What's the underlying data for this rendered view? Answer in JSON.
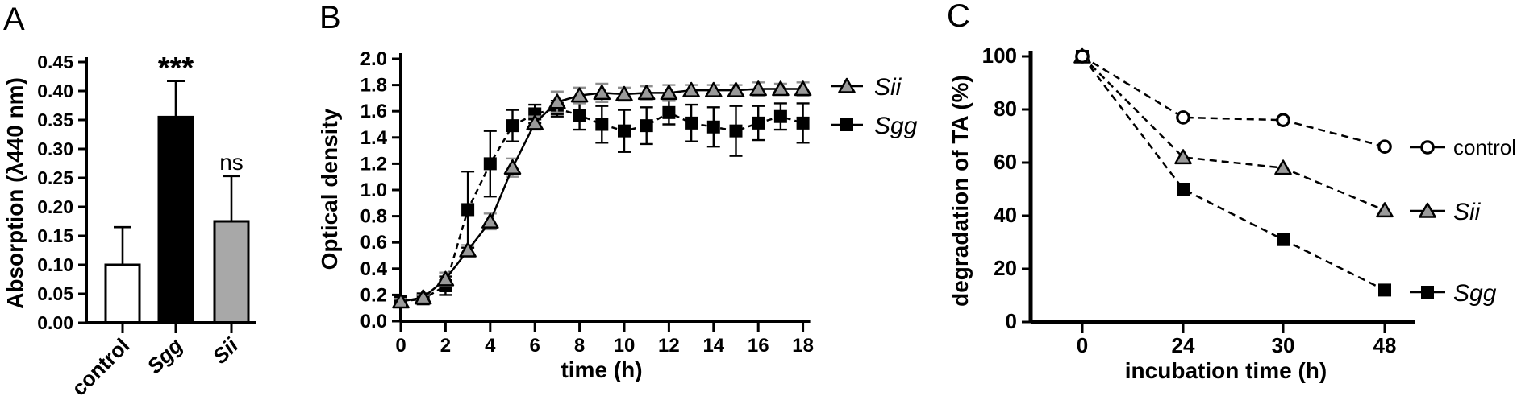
{
  "figure_background": "#ffffff",
  "chart_data": [
    {
      "id": "A",
      "type": "bar",
      "panel_label": "A",
      "ylabel": "Absorption  (λ440 nm)",
      "xlabel": "",
      "ylim": [
        0,
        0.45
      ],
      "ytick_step": 0.05,
      "ytick_labels": [
        "0.00",
        "0.05",
        "0.10",
        "0.15",
        "0.20",
        "0.25",
        "0.30",
        "0.35",
        "0.40",
        "0.45"
      ],
      "categories": [
        "control",
        "Sgg",
        "Sii"
      ],
      "categories_italic": [
        false,
        true,
        true
      ],
      "values": [
        0.1,
        0.355,
        0.175
      ],
      "errors_up": [
        0.065,
        0.062,
        0.078
      ],
      "bar_colors": [
        "#ffffff",
        "#000000",
        "#a8a8a8"
      ],
      "bar_border_color": "#000000",
      "significance": [
        "",
        "***",
        "ns"
      ],
      "grid": false,
      "legend_position": "none"
    },
    {
      "id": "B",
      "type": "line",
      "panel_label": "B",
      "ylabel": "Optical density",
      "xlabel": "time (h)",
      "ylim": [
        0,
        2.0
      ],
      "ytick_step": 0.2,
      "ytick_labels": [
        "0.0",
        "0.2",
        "0.4",
        "0.6",
        "0.8",
        "1.0",
        "1.2",
        "1.4",
        "1.6",
        "1.8",
        "2.0"
      ],
      "x": [
        0,
        1,
        2,
        3,
        4,
        5,
        6,
        7,
        8,
        9,
        10,
        11,
        12,
        13,
        14,
        15,
        16,
        17,
        18
      ],
      "xticks": [
        0,
        2,
        4,
        6,
        8,
        10,
        12,
        14,
        16,
        18
      ],
      "xtick_labels": [
        "0",
        "2",
        "4",
        "6",
        "8",
        "10",
        "12",
        "14",
        "16",
        "18"
      ],
      "xlim": [
        0,
        18
      ],
      "grid": false,
      "legend_position": "right-of-plot",
      "series": [
        {
          "name": "Sii",
          "italic": true,
          "marker": "triangle",
          "marker_fill": "#9a9a9a",
          "line_color": "#000000",
          "line_dash": "none",
          "error_color": "#8f8f8f",
          "values": [
            0.15,
            0.18,
            0.32,
            0.54,
            0.76,
            1.17,
            1.51,
            1.67,
            1.72,
            1.74,
            1.73,
            1.74,
            1.74,
            1.76,
            1.76,
            1.76,
            1.77,
            1.77,
            1.77
          ],
          "errors": [
            0.02,
            0.02,
            0.05,
            0.04,
            0.06,
            0.07,
            0.05,
            0.08,
            0.06,
            0.07,
            0.05,
            0.05,
            0.06,
            0.04,
            0.04,
            0.04,
            0.05,
            0.04,
            0.05
          ]
        },
        {
          "name": "Sgg",
          "italic": true,
          "marker": "square",
          "marker_fill": "#000000",
          "line_color": "#000000",
          "line_dash": "7 5",
          "error_color": "#000000",
          "values": [
            0.15,
            0.17,
            0.27,
            0.85,
            1.2,
            1.49,
            1.58,
            1.62,
            1.57,
            1.5,
            1.45,
            1.49,
            1.59,
            1.51,
            1.48,
            1.45,
            1.51,
            1.56,
            1.51
          ],
          "errors": [
            0.03,
            0.03,
            0.07,
            0.29,
            0.25,
            0.12,
            0.07,
            0.06,
            0.11,
            0.14,
            0.16,
            0.14,
            0.09,
            0.14,
            0.15,
            0.19,
            0.13,
            0.1,
            0.15
          ]
        }
      ]
    },
    {
      "id": "C",
      "type": "line",
      "panel_label": "C",
      "ylabel": "degradation of TA (%)",
      "xlabel": "incubation time (h)",
      "ylim": [
        0,
        100
      ],
      "ytick_step": 20,
      "ytick_labels": [
        "0",
        "20",
        "40",
        "60",
        "80",
        "100"
      ],
      "x_categories": [
        "0",
        "24",
        "30",
        "48"
      ],
      "xtick_labels": [
        "0",
        "24",
        "30",
        "48"
      ],
      "x_scale": "categorical-even-spacing",
      "grid": false,
      "legend_position": "right-of-plot",
      "series": [
        {
          "name": "control",
          "italic": false,
          "marker": "circle-open",
          "marker_fill": "#ffffff",
          "line_color": "#000000",
          "line_dash": "9 6",
          "values": [
            100,
            77,
            76,
            66
          ]
        },
        {
          "name": "Sii",
          "italic": true,
          "marker": "triangle",
          "marker_fill": "#9a9a9a",
          "line_color": "#000000",
          "line_dash": "9 6",
          "values": [
            100,
            62,
            58,
            42
          ]
        },
        {
          "name": "Sgg",
          "italic": true,
          "marker": "square",
          "marker_fill": "#000000",
          "line_color": "#000000",
          "line_dash": "9 6",
          "values": [
            100,
            50,
            31,
            12
          ]
        }
      ]
    }
  ]
}
